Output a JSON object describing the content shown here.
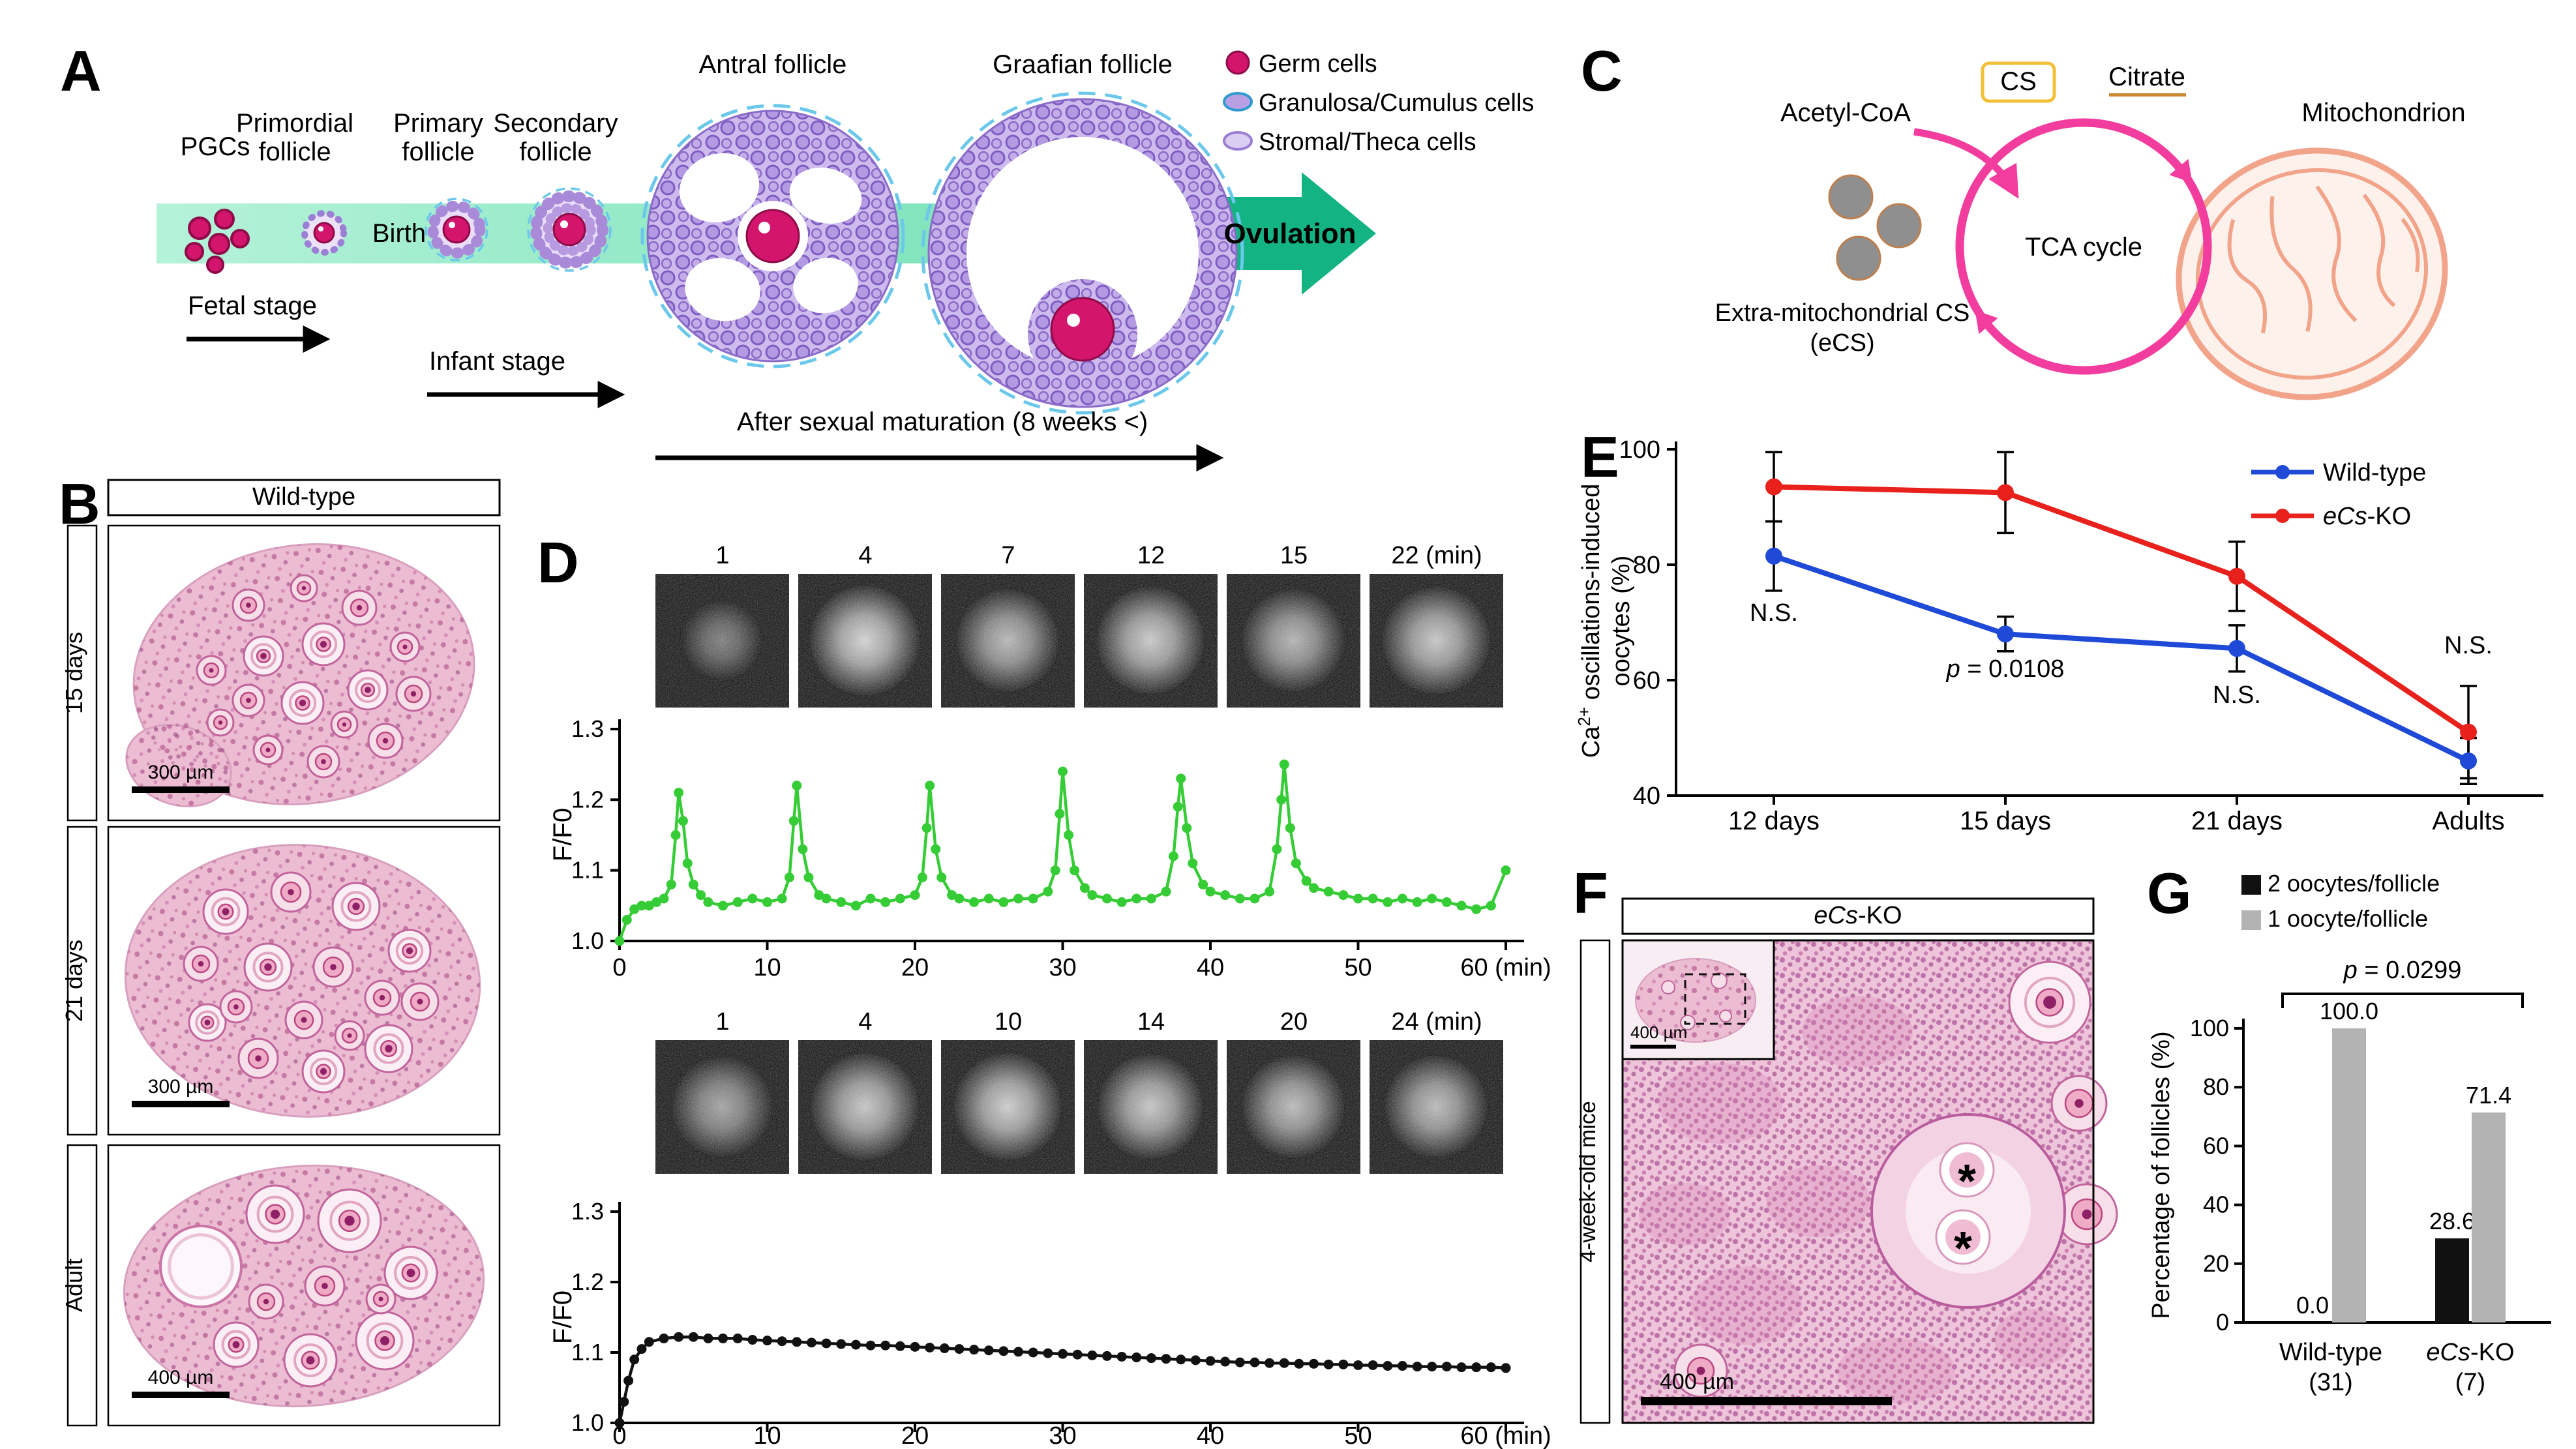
{
  "panels": {
    "a": {
      "letter": "A",
      "pgcs": "PGCs",
      "primordial_1": "Primordial",
      "primordial_2": "follicle",
      "birth": "Birth",
      "primary_1": "Primary",
      "primary_2": "follicle",
      "secondary_1": "Secondary",
      "secondary_2": "follicle",
      "antral": "Antral follicle",
      "graafian": "Graafian follicle",
      "ovulation": "Ovulation",
      "legend_germ": "Germ cells",
      "legend_granulosa": "Granulosa/Cumulus cells",
      "legend_stromal": "Stromal/Theca cells",
      "fetal": "Fetal stage",
      "infant": "Infant stage",
      "maturation": "After sexual maturation (8 weeks <)"
    },
    "b": {
      "letter": "B",
      "title": "Wild-type",
      "rows": [
        {
          "age": "15 days",
          "scale": "300 µm"
        },
        {
          "age": "21 days",
          "scale": "300 µm"
        },
        {
          "age": "Adult",
          "scale": "400 µm"
        }
      ]
    },
    "c": {
      "letter": "C",
      "acetyl": "Acetyl-CoA",
      "cs": "CS",
      "citrate": "Citrate",
      "mitochondrion": "Mitochondrion",
      "tca": "TCA cycle",
      "ecs_1": "Extra-mitochondrial CS",
      "ecs_2": "(eCS)"
    },
    "d": {
      "letter": "D",
      "top_times": [
        "1",
        "4",
        "7",
        "12",
        "15",
        "22 (min)"
      ],
      "bottom_times": [
        "1",
        "4",
        "10",
        "14",
        "20",
        "24 (min)"
      ]
    },
    "e": {
      "letter": "E"
    },
    "f": {
      "letter": "F",
      "title_italic": "eCs",
      "title_rest": "-KO",
      "side_label": "4-week-old mice",
      "inset_scale": "400 µm",
      "scale": "400 µm",
      "asterisk": "*"
    },
    "g": {
      "letter": "G"
    }
  },
  "chart_data": [
    {
      "id": "d_top",
      "type": "line",
      "title": "Ca oscillations trace (oscillating oocyte)",
      "ylabel": "F/F0",
      "x_unit": "(min)",
      "xlim": [
        0,
        60
      ],
      "ylim": [
        1.0,
        1.3
      ],
      "xticks": [
        0,
        10,
        20,
        30,
        40,
        50,
        60
      ],
      "yticks": [
        1.0,
        1.1,
        1.2,
        1.3
      ],
      "grid": false,
      "color": "#35cc35",
      "points": [
        [
          0,
          1.0
        ],
        [
          0.5,
          1.03
        ],
        [
          1,
          1.045
        ],
        [
          1.5,
          1.05
        ],
        [
          2,
          1.05
        ],
        [
          2.5,
          1.055
        ],
        [
          3,
          1.06
        ],
        [
          3.5,
          1.08
        ],
        [
          3.8,
          1.15
        ],
        [
          4,
          1.21
        ],
        [
          4.3,
          1.17
        ],
        [
          4.6,
          1.11
        ],
        [
          5,
          1.08
        ],
        [
          5.5,
          1.065
        ],
        [
          6,
          1.055
        ],
        [
          7,
          1.05
        ],
        [
          8,
          1.055
        ],
        [
          9,
          1.06
        ],
        [
          10,
          1.055
        ],
        [
          11,
          1.06
        ],
        [
          11.5,
          1.09
        ],
        [
          11.8,
          1.17
        ],
        [
          12,
          1.22
        ],
        [
          12.4,
          1.13
        ],
        [
          12.8,
          1.09
        ],
        [
          13.5,
          1.065
        ],
        [
          14,
          1.06
        ],
        [
          15,
          1.055
        ],
        [
          16,
          1.05
        ],
        [
          17,
          1.06
        ],
        [
          18,
          1.055
        ],
        [
          19,
          1.06
        ],
        [
          20,
          1.065
        ],
        [
          20.5,
          1.09
        ],
        [
          20.8,
          1.16
        ],
        [
          21,
          1.22
        ],
        [
          21.4,
          1.13
        ],
        [
          21.8,
          1.09
        ],
        [
          22.5,
          1.065
        ],
        [
          23,
          1.06
        ],
        [
          24,
          1.055
        ],
        [
          25,
          1.06
        ],
        [
          26,
          1.055
        ],
        [
          27,
          1.06
        ],
        [
          28,
          1.06
        ],
        [
          29,
          1.07
        ],
        [
          29.5,
          1.1
        ],
        [
          29.8,
          1.18
        ],
        [
          30,
          1.24
        ],
        [
          30.4,
          1.15
        ],
        [
          30.8,
          1.1
        ],
        [
          31.5,
          1.075
        ],
        [
          32,
          1.065
        ],
        [
          33,
          1.06
        ],
        [
          34,
          1.055
        ],
        [
          35,
          1.06
        ],
        [
          36,
          1.06
        ],
        [
          37,
          1.07
        ],
        [
          37.5,
          1.12
        ],
        [
          37.8,
          1.19
        ],
        [
          38,
          1.23
        ],
        [
          38.4,
          1.16
        ],
        [
          38.8,
          1.11
        ],
        [
          39.5,
          1.08
        ],
        [
          40,
          1.07
        ],
        [
          41,
          1.065
        ],
        [
          42,
          1.06
        ],
        [
          43,
          1.06
        ],
        [
          44,
          1.07
        ],
        [
          44.5,
          1.13
        ],
        [
          44.8,
          1.2
        ],
        [
          45,
          1.25
        ],
        [
          45.4,
          1.16
        ],
        [
          45.8,
          1.11
        ],
        [
          46.5,
          1.085
        ],
        [
          47,
          1.075
        ],
        [
          48,
          1.07
        ],
        [
          49,
          1.065
        ],
        [
          50,
          1.06
        ],
        [
          51,
          1.06
        ],
        [
          52,
          1.055
        ],
        [
          53,
          1.06
        ],
        [
          54,
          1.055
        ],
        [
          55,
          1.06
        ],
        [
          56,
          1.055
        ],
        [
          57,
          1.05
        ],
        [
          58,
          1.045
        ],
        [
          59,
          1.05
        ],
        [
          60,
          1.1
        ]
      ]
    },
    {
      "id": "d_bottom",
      "type": "line",
      "title": "Ca trace (non-oscillating oocyte)",
      "ylabel": "F/F0",
      "x_unit": "(min)",
      "xlim": [
        0,
        60
      ],
      "ylim": [
        1.0,
        1.3
      ],
      "xticks": [
        0,
        10,
        20,
        30,
        40,
        50,
        60
      ],
      "yticks": [
        1.0,
        1.1,
        1.2,
        1.3
      ],
      "grid": false,
      "color": "#111111",
      "points": [
        [
          0,
          1.0
        ],
        [
          0.3,
          1.03
        ],
        [
          0.6,
          1.06
        ],
        [
          1,
          1.09
        ],
        [
          1.5,
          1.105
        ],
        [
          2,
          1.115
        ],
        [
          3,
          1.12
        ],
        [
          4,
          1.122
        ],
        [
          5,
          1.122
        ],
        [
          6,
          1.12
        ],
        [
          7,
          1.12
        ],
        [
          8,
          1.12
        ],
        [
          9,
          1.118
        ],
        [
          10,
          1.117
        ],
        [
          11,
          1.116
        ],
        [
          12,
          1.115
        ],
        [
          13,
          1.114
        ],
        [
          14,
          1.113
        ],
        [
          15,
          1.112
        ],
        [
          16,
          1.111
        ],
        [
          17,
          1.11
        ],
        [
          18,
          1.11
        ],
        [
          19,
          1.109
        ],
        [
          20,
          1.108
        ],
        [
          21,
          1.107
        ],
        [
          22,
          1.106
        ],
        [
          23,
          1.105
        ],
        [
          24,
          1.104
        ],
        [
          25,
          1.103
        ],
        [
          26,
          1.102
        ],
        [
          27,
          1.101
        ],
        [
          28,
          1.1
        ],
        [
          29,
          1.099
        ],
        [
          30,
          1.098
        ],
        [
          31,
          1.097
        ],
        [
          32,
          1.096
        ],
        [
          33,
          1.095
        ],
        [
          34,
          1.094
        ],
        [
          35,
          1.093
        ],
        [
          36,
          1.092
        ],
        [
          37,
          1.091
        ],
        [
          38,
          1.09
        ],
        [
          39,
          1.089
        ],
        [
          40,
          1.088
        ],
        [
          41,
          1.087
        ],
        [
          42,
          1.086
        ],
        [
          43,
          1.086
        ],
        [
          44,
          1.085
        ],
        [
          45,
          1.085
        ],
        [
          46,
          1.084
        ],
        [
          47,
          1.084
        ],
        [
          48,
          1.083
        ],
        [
          49,
          1.083
        ],
        [
          50,
          1.082
        ],
        [
          51,
          1.082
        ],
        [
          52,
          1.081
        ],
        [
          53,
          1.081
        ],
        [
          54,
          1.08
        ],
        [
          55,
          1.08
        ],
        [
          56,
          1.08
        ],
        [
          57,
          1.079
        ],
        [
          58,
          1.079
        ],
        [
          59,
          1.079
        ],
        [
          60,
          1.078
        ]
      ]
    },
    {
      "id": "e",
      "type": "line",
      "title": "Ca oscillations-induced oocytes by age",
      "categories": [
        "12 days",
        "15 days",
        "21 days",
        "Adults"
      ],
      "ylabel_base": "Ca",
      "ylabel_sup": "2+",
      "ylabel_rest": " oscillations-induced",
      "ylabel_line2": "oocytes (%)",
      "ylim": [
        40,
        100
      ],
      "yticks": [
        40,
        60,
        80,
        100
      ],
      "grid": false,
      "legend_position": "top-right",
      "series": [
        {
          "name_text": "Wild-type",
          "color": "#1f49d7",
          "values": [
            81.5,
            68,
            65.5,
            46
          ],
          "errors": [
            6,
            3,
            4,
            4
          ]
        },
        {
          "name_italic": "eCs",
          "name_rest": "-KO",
          "color": "#e8211c",
          "values": [
            93.5,
            92.5,
            78,
            51
          ],
          "errors": [
            6,
            7,
            6,
            8
          ]
        }
      ],
      "annotations": [
        {
          "text": "N.S."
        },
        {
          "italic": "p",
          "rest": " = 0.0108"
        },
        {
          "text": "N.S."
        },
        {
          "text": "N.S."
        }
      ]
    },
    {
      "id": "g",
      "type": "bar",
      "title": "Percentage of follicles with 1 vs 2 oocytes",
      "ylabel": "Percentage of follicles (%)",
      "ylim": [
        0,
        100
      ],
      "yticks": [
        0,
        20,
        40,
        60,
        80,
        100
      ],
      "grid": false,
      "categories": [
        {
          "text": "Wild-type",
          "n": "(31)"
        },
        {
          "italic": "eCs",
          "rest": "-KO",
          "n": "(7)"
        }
      ],
      "series": [
        {
          "name": "2 oocytes/follicle",
          "color": "#111111",
          "values": [
            0.0,
            28.6
          ]
        },
        {
          "name": "1 oocyte/follicle",
          "color": "#b3b3b3",
          "values": [
            100.0,
            71.4
          ]
        }
      ],
      "value_labels": [
        [
          "0.0",
          "28.6"
        ],
        [
          "100.0",
          "71.4"
        ]
      ],
      "p_label": {
        "italic": "p",
        "rest": " = 0.0299"
      }
    }
  ]
}
